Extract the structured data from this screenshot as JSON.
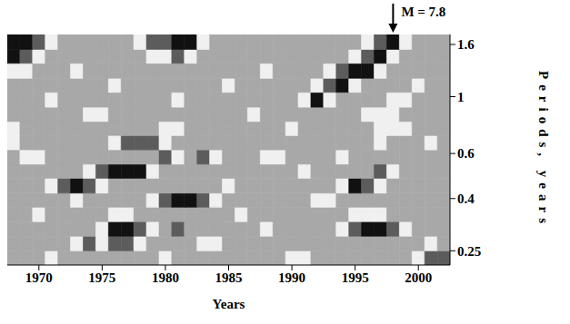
{
  "chart_data": {
    "type": "heatmap",
    "x_label": "Years",
    "y_label": "Periods, years",
    "xlim": [
      1967.5,
      2002.5
    ],
    "xticks": [
      1970,
      1975,
      1980,
      1985,
      1990,
      1995,
      2000
    ],
    "ylim": [
      0.22,
      1.75
    ],
    "yticks": [
      0.25,
      0.4,
      0.6,
      1,
      1.6
    ],
    "log": "y",
    "x_edges": [
      1967.5,
      1968.5,
      1969.5,
      1970.5,
      1971.5,
      1972.5,
      1973.5,
      1974.5,
      1975.5,
      1976.5,
      1977.5,
      1978.5,
      1979.5,
      1980.5,
      1981.5,
      1982.5,
      1983.5,
      1984.5,
      1985.5,
      1986.5,
      1987.5,
      1988.5,
      1989.5,
      1990.5,
      1991.5,
      1992.5,
      1993.5,
      1994.5,
      1995.5,
      1996.5,
      1997.5,
      1998.5,
      1999.5,
      2000.5,
      2001.5,
      2002.5
    ],
    "y_edges": [
      0.22,
      0.25,
      0.285,
      0.325,
      0.37,
      0.42,
      0.48,
      0.545,
      0.62,
      0.705,
      0.8,
      0.91,
      1.04,
      1.18,
      1.35,
      1.53,
      1.75
    ],
    "cells": [
      [
        1,
        1,
        1,
        0,
        1,
        1,
        1,
        1,
        1,
        1,
        1,
        1,
        0,
        1,
        1,
        1,
        1,
        1,
        1,
        1,
        1,
        1,
        0,
        0,
        1,
        1,
        1,
        1,
        1,
        1,
        1,
        1,
        0,
        2,
        2
      ],
      [
        1,
        1,
        1,
        1,
        1,
        0,
        2,
        0,
        2,
        2,
        0,
        1,
        1,
        1,
        1,
        0,
        0,
        1,
        1,
        1,
        1,
        1,
        1,
        1,
        1,
        1,
        1,
        1,
        1,
        1,
        1,
        1,
        1,
        0,
        1
      ],
      [
        1,
        1,
        1,
        1,
        1,
        1,
        1,
        0,
        3,
        3,
        2,
        0,
        1,
        2,
        1,
        1,
        1,
        1,
        1,
        1,
        0,
        1,
        1,
        1,
        1,
        1,
        0,
        2,
        3,
        3,
        2,
        0,
        1,
        1,
        1
      ],
      [
        1,
        1,
        0,
        1,
        1,
        1,
        1,
        1,
        0,
        0,
        1,
        1,
        1,
        1,
        1,
        1,
        1,
        1,
        0,
        1,
        1,
        1,
        1,
        1,
        1,
        1,
        1,
        0,
        0,
        0,
        1,
        1,
        1,
        1,
        1
      ],
      [
        1,
        1,
        1,
        1,
        1,
        0,
        1,
        1,
        1,
        1,
        1,
        0,
        2,
        3,
        3,
        2,
        0,
        1,
        1,
        1,
        1,
        1,
        1,
        1,
        0,
        0,
        1,
        1,
        1,
        1,
        1,
        1,
        1,
        1,
        1
      ],
      [
        1,
        1,
        1,
        0,
        2,
        3,
        2,
        0,
        1,
        1,
        1,
        1,
        1,
        1,
        1,
        1,
        1,
        0,
        1,
        1,
        1,
        1,
        1,
        1,
        1,
        1,
        0,
        3,
        2,
        0,
        1,
        1,
        1,
        1,
        1
      ],
      [
        1,
        1,
        1,
        1,
        1,
        1,
        0,
        2,
        3,
        3,
        3,
        0,
        1,
        1,
        1,
        1,
        1,
        1,
        1,
        1,
        1,
        1,
        1,
        0,
        1,
        1,
        1,
        1,
        1,
        2,
        0,
        1,
        1,
        1,
        1
      ],
      [
        1,
        0,
        0,
        1,
        1,
        1,
        1,
        1,
        1,
        1,
        1,
        1,
        2,
        0,
        1,
        2,
        0,
        1,
        1,
        1,
        0,
        0,
        1,
        1,
        1,
        1,
        0,
        1,
        1,
        1,
        1,
        1,
        1,
        1,
        1
      ],
      [
        0,
        1,
        1,
        1,
        1,
        1,
        1,
        1,
        0,
        2,
        2,
        2,
        0,
        1,
        1,
        1,
        1,
        1,
        1,
        1,
        1,
        1,
        1,
        1,
        1,
        1,
        1,
        1,
        1,
        0,
        1,
        1,
        1,
        0,
        1
      ],
      [
        0,
        1,
        1,
        1,
        1,
        1,
        1,
        1,
        1,
        1,
        1,
        1,
        0,
        0,
        1,
        1,
        1,
        1,
        1,
        1,
        1,
        1,
        0,
        1,
        1,
        1,
        1,
        1,
        1,
        0,
        0,
        0,
        1,
        1,
        1
      ],
      [
        1,
        1,
        1,
        1,
        1,
        1,
        0,
        0,
        1,
        1,
        1,
        1,
        1,
        1,
        1,
        1,
        1,
        1,
        1,
        0,
        1,
        1,
        1,
        1,
        1,
        1,
        1,
        1,
        0,
        0,
        0,
        1,
        1,
        1,
        1
      ],
      [
        1,
        1,
        1,
        0,
        1,
        1,
        1,
        1,
        1,
        1,
        1,
        1,
        1,
        0,
        1,
        1,
        1,
        1,
        1,
        1,
        1,
        1,
        1,
        0,
        3,
        0,
        1,
        1,
        1,
        1,
        0,
        0,
        1,
        1,
        1
      ],
      [
        1,
        1,
        1,
        1,
        1,
        1,
        1,
        1,
        0,
        1,
        1,
        1,
        1,
        1,
        1,
        1,
        1,
        0,
        1,
        1,
        1,
        1,
        1,
        1,
        0,
        2,
        3,
        0,
        1,
        1,
        1,
        1,
        0,
        1,
        1
      ],
      [
        0,
        0,
        1,
        1,
        1,
        0,
        1,
        1,
        1,
        1,
        1,
        1,
        1,
        1,
        1,
        1,
        1,
        1,
        1,
        1,
        0,
        1,
        1,
        1,
        1,
        0,
        2,
        3,
        3,
        0,
        1,
        1,
        1,
        1,
        1
      ],
      [
        3,
        2,
        0,
        1,
        1,
        1,
        1,
        1,
        1,
        1,
        1,
        0,
        0,
        2,
        0,
        1,
        1,
        1,
        1,
        1,
        1,
        1,
        1,
        1,
        1,
        1,
        1,
        0,
        2,
        3,
        0,
        1,
        1,
        1,
        1
      ],
      [
        3,
        3,
        2,
        0,
        1,
        1,
        1,
        1,
        1,
        1,
        0,
        2,
        2,
        3,
        3,
        0,
        1,
        1,
        1,
        1,
        1,
        1,
        1,
        1,
        1,
        1,
        1,
        1,
        0,
        2,
        3,
        0,
        1,
        1,
        1
      ]
    ],
    "annotations": [
      {
        "x": 1998,
        "y": 1.75,
        "text": "M = 7.8"
      }
    ]
  }
}
